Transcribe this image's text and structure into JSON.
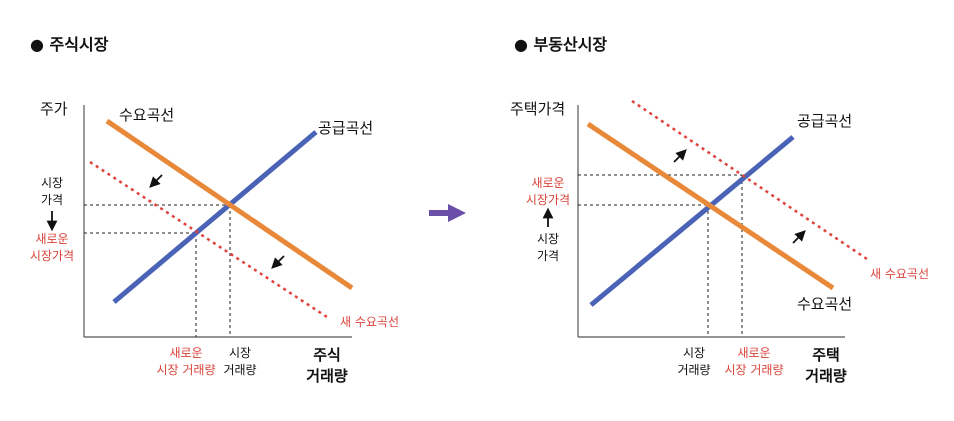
{
  "colors": {
    "demand": "#e8893a",
    "supply": "#4a63b6",
    "new_demand": "#e0433c",
    "red_text": "#d9433a",
    "text": "#111111",
    "arrow": "#6a4fa8"
  },
  "left": {
    "title": "● 주식시장",
    "y_axis_label": "주가",
    "x_axis_label_1": "주식",
    "x_axis_label_2": "거래량",
    "demand_label": "수요곡선",
    "supply_label": "공급곡선",
    "new_demand_label": "새 수요곡선",
    "y_market_1": "시장",
    "y_market_2": "가격",
    "y_new_1": "새로운",
    "y_new_2": "시장가격",
    "x_new_1": "새로운",
    "x_new_2": "시장 거래량",
    "x_market_1": "시장",
    "x_market_2": "거래량"
  },
  "right": {
    "title": "● 부동산시장",
    "y_axis_label": "주택가격",
    "x_axis_label_1": "주택",
    "x_axis_label_2": "거래량",
    "demand_label": "수요곡선",
    "supply_label": "공급곡선",
    "new_demand_label": "새 수요곡선",
    "y_new_1": "새로운",
    "y_new_2": "시장가격",
    "y_market_1": "시장",
    "y_market_2": "가격",
    "x_market_1": "시장",
    "x_market_2": "거래량",
    "x_new_1": "새로운",
    "x_new_2": "시장 거래량"
  }
}
